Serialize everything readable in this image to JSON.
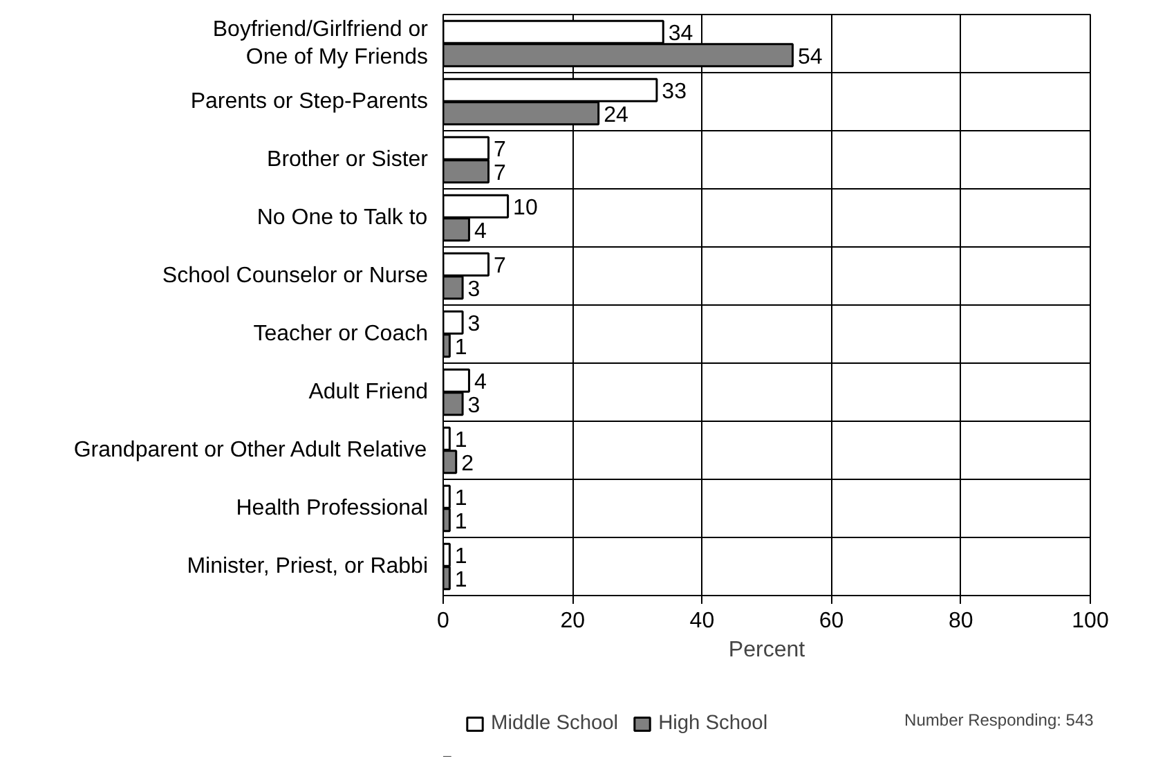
{
  "chart_data": {
    "type": "bar",
    "orientation": "horizontal",
    "xlabel": "Percent",
    "categories": [
      "Boyfriend/Girlfriend or\nOne of My Friends",
      "Parents or Step-Parents",
      "Brother or Sister",
      "No One to Talk to",
      "School Counselor or Nurse",
      "Teacher or Coach",
      "Adult Friend",
      "Grandparent or Other Adult Relative",
      "Health Professional",
      "Minister, Priest, or Rabbi"
    ],
    "series": [
      {
        "name": "Middle School",
        "color": "#ffffff",
        "values": [
          34,
          33,
          7,
          10,
          7,
          3,
          4,
          1,
          1,
          1
        ]
      },
      {
        "name": "High School",
        "color": "#808080",
        "values": [
          54,
          24,
          7,
          4,
          3,
          1,
          3,
          2,
          1,
          1
        ]
      }
    ],
    "xlim": [
      0,
      100
    ],
    "xticks": [
      0,
      20,
      40,
      60,
      80,
      100
    ],
    "grid": true,
    "data_labels": true,
    "legend": "bottom left",
    "annotations": [
      "Number Responding: 543"
    ]
  }
}
